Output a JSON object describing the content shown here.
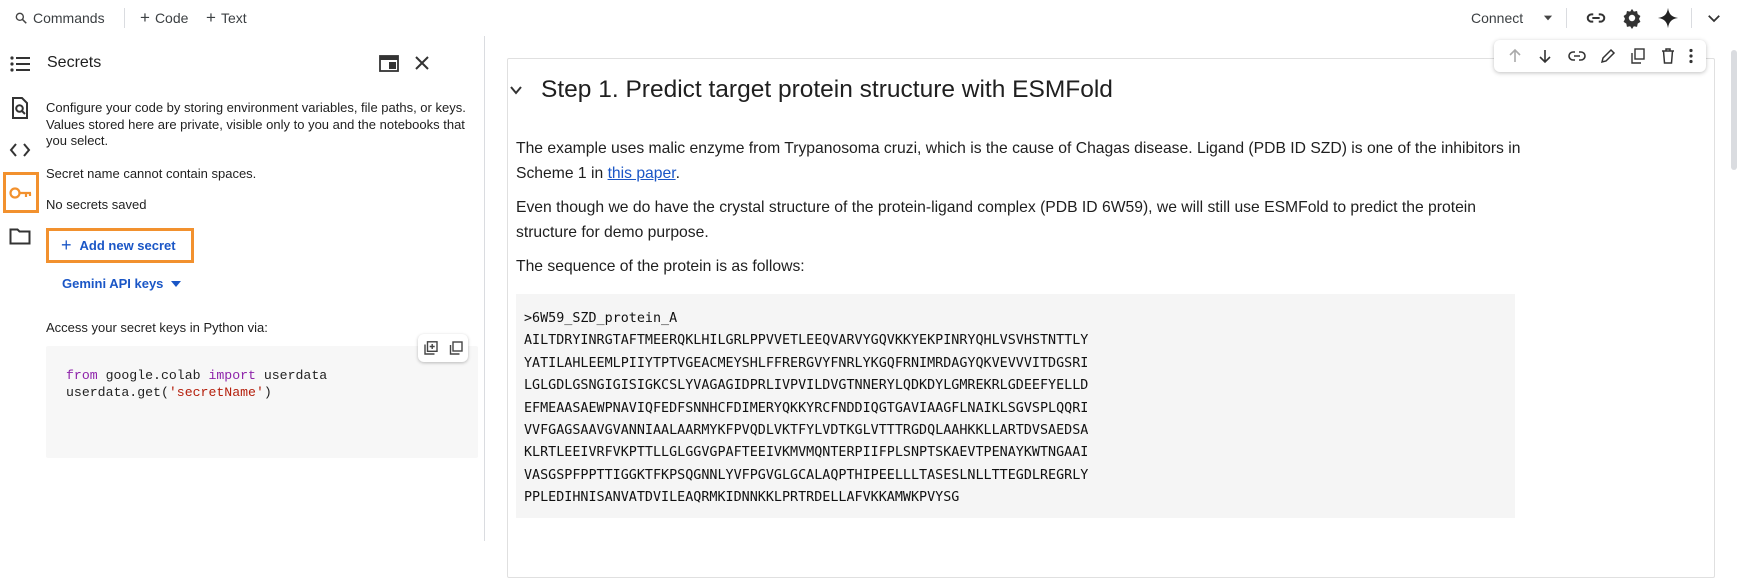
{
  "toolbar": {
    "commands_label": "Commands",
    "code_label": "Code",
    "text_label": "Text",
    "connect_label": "Connect"
  },
  "rail": {
    "items": [
      "table-of-contents",
      "find-and-replace",
      "code-snippets",
      "secrets",
      "files"
    ],
    "active": "secrets",
    "highlight_color": "#f2912e"
  },
  "secrets_panel": {
    "title": "Secrets",
    "description": "Configure your code by storing environment variables, file paths, or keys. Values stored here are private, visible only to you and the notebooks that you select.",
    "name_rule": "Secret name cannot contain spaces.",
    "empty_state": "No secrets saved",
    "add_button_label": "Add new secret",
    "gemini_label": "Gemini API keys",
    "access_label": "Access your secret keys in Python via:",
    "code": {
      "line1": [
        "from",
        " google.colab ",
        "import",
        " userdata"
      ],
      "line2": [
        "userdata.get(",
        "'secretName'",
        ")"
      ]
    }
  },
  "notebook": {
    "heading": "Step 1. Predict target protein structure with ESMFold",
    "para1_text": "The example uses malic enzyme from Trypanosoma cruzi, which is the cause of Chagas disease. Ligand (PDB ID SZD) is one of the inhibitors in Scheme 1 in ",
    "para1_link": "this paper",
    "para1_end": ".",
    "para2": "Even though we do have the crystal structure of the protein-ligand complex (PDB ID 6W59), we will still use ESMFold to predict the protein structure for demo purpose.",
    "para3": "The sequence of the protein is as follows:",
    "sequence_header": ">6W59_SZD_protein_A",
    "sequence_lines": [
      "AILTDRYINRGTAFTMEERQKLHILGRLPPVVETLEEQVARVYGQVKKYEKPINRYQHLVSVHSTNTTLY",
      "YATILAHLEEMLPIIYTPTVGEACMEYSHLFFRERGVYFNRLYKGQFRNIMRDAGYQKVEVVVITDGSRI",
      "LGLGDLGSNGIGISIGKCSLYVAGAGIDPRLIVPVILDVGTNNERYLQDKDYLGMREKRLGDEEFYELLD",
      "EFMEAASAEWPNAVIQFEDFSNNHCFDIMERYQKKYRCFNDDIQGTGAVIAAGFLNAIKLSGVSPLQQRI",
      "VVFGAGSAAVGVANNIAALAARMYKFPVQDLVKTFYLVDTKGLVTTTRGDQLAAHKKLLARTDVSAEDSA",
      "KLRTLEEIVRFVKPTTLLGLGGVGPAFTEEIVKMVMQNTERPIIFPLSNPTSKAEVTPENAYKWTNGAAI",
      "VASGSPFPPTTIGGKTFKPSQGNNLYVFPGVGLGCALAQPTHIPEELLLTASESLNLLTTEGDLREGRLY",
      "PPLEDIHNISANVATDVILEAQRMKIDNNKKLPRTRDELLAFVKKAMWKPVYSG"
    ]
  }
}
